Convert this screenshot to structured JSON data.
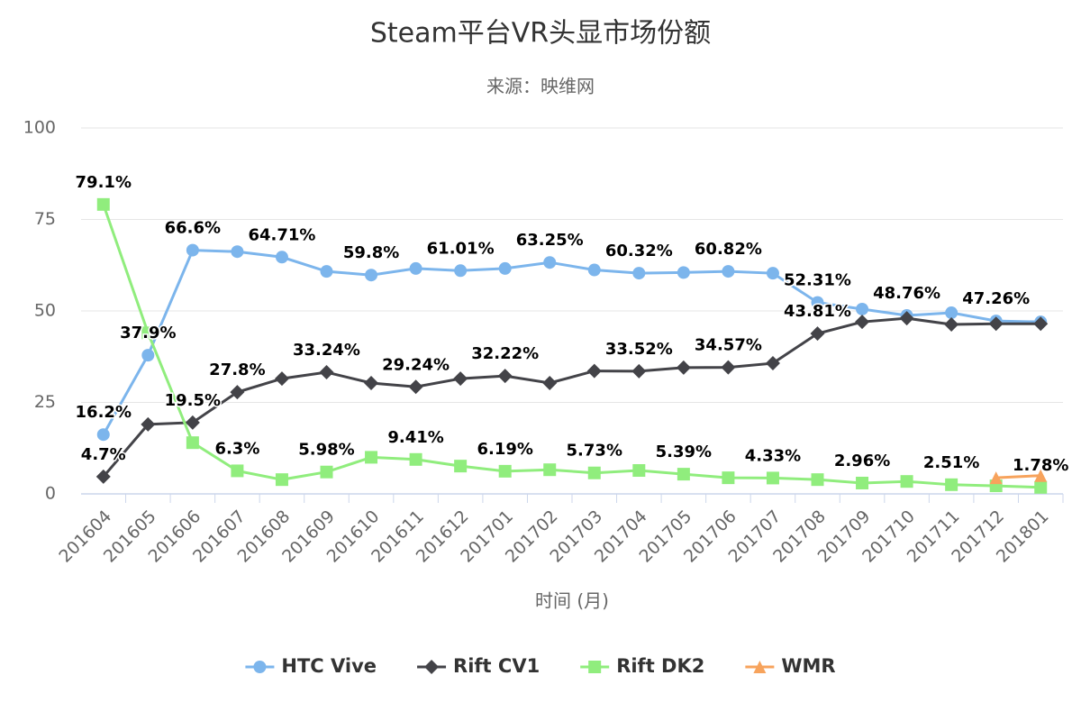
{
  "chart_data": {
    "type": "line",
    "title": "Steam平台VR头显市场份额",
    "subtitle": "来源：映维网",
    "x_label": "时间 (月)",
    "categories": [
      "201604",
      "201605",
      "201606",
      "201607",
      "201608",
      "201609",
      "201610",
      "201611",
      "201612",
      "201701",
      "201702",
      "201703",
      "201704",
      "201705",
      "201706",
      "201707",
      "201708",
      "201709",
      "201710",
      "201711",
      "201712",
      "201801"
    ],
    "ylim": [
      0,
      100
    ],
    "yticks": [
      0,
      25,
      50,
      75,
      100
    ],
    "grid": true,
    "legend": "bottom",
    "series": [
      {
        "name": "HTC Vive",
        "color": "#7cb5ec",
        "marker": "circle",
        "values": [
          16.2,
          37.9,
          66.6,
          66.2,
          64.71,
          60.8,
          59.8,
          61.6,
          61.01,
          61.6,
          63.25,
          61.2,
          60.32,
          60.5,
          60.82,
          60.3,
          52.31,
          50.5,
          48.76,
          49.5,
          47.26,
          47.0
        ],
        "value_labels": [
          "16.2%",
          "37.9%",
          "66.6%",
          null,
          "64.71%",
          null,
          "59.8%",
          null,
          "61.01%",
          null,
          "63.25%",
          null,
          "60.32%",
          null,
          "60.82%",
          null,
          "52.31%",
          null,
          "48.76%",
          null,
          "47.26%",
          null
        ]
      },
      {
        "name": "Rift CV1",
        "color": "#434348",
        "marker": "diamond",
        "values": [
          4.7,
          19.0,
          19.5,
          27.8,
          31.5,
          33.24,
          30.3,
          29.24,
          31.5,
          32.22,
          30.3,
          33.6,
          33.52,
          34.5,
          34.57,
          35.7,
          43.81,
          47.0,
          48.0,
          46.3,
          46.5,
          46.5
        ],
        "value_labels": [
          "4.7%",
          null,
          "19.5%",
          "27.8%",
          null,
          "33.24%",
          null,
          "29.24%",
          null,
          "32.22%",
          null,
          null,
          "33.52%",
          null,
          "34.57%",
          null,
          "43.81%",
          null,
          null,
          null,
          null,
          null
        ]
      },
      {
        "name": "Rift DK2",
        "color": "#90ed7d",
        "marker": "square",
        "values": [
          79.1,
          44.0,
          14.0,
          6.3,
          3.9,
          5.98,
          10.0,
          9.41,
          7.6,
          6.19,
          6.6,
          5.73,
          6.4,
          5.39,
          4.4,
          4.33,
          3.9,
          2.96,
          3.4,
          2.51,
          2.2,
          1.78
        ],
        "value_labels": [
          "79.1%",
          null,
          null,
          "6.3%",
          null,
          "5.98%",
          null,
          "9.41%",
          null,
          "6.19%",
          null,
          "5.73%",
          null,
          "5.39%",
          null,
          "4.33%",
          null,
          "2.96%",
          null,
          "2.51%",
          null,
          "1.78%"
        ]
      },
      {
        "name": "WMR",
        "color": "#f7a35c",
        "marker": "triangle",
        "values": [
          null,
          null,
          null,
          null,
          null,
          null,
          null,
          null,
          null,
          null,
          null,
          null,
          null,
          null,
          null,
          null,
          null,
          null,
          null,
          null,
          4.4,
          5.0
        ]
      }
    ]
  }
}
